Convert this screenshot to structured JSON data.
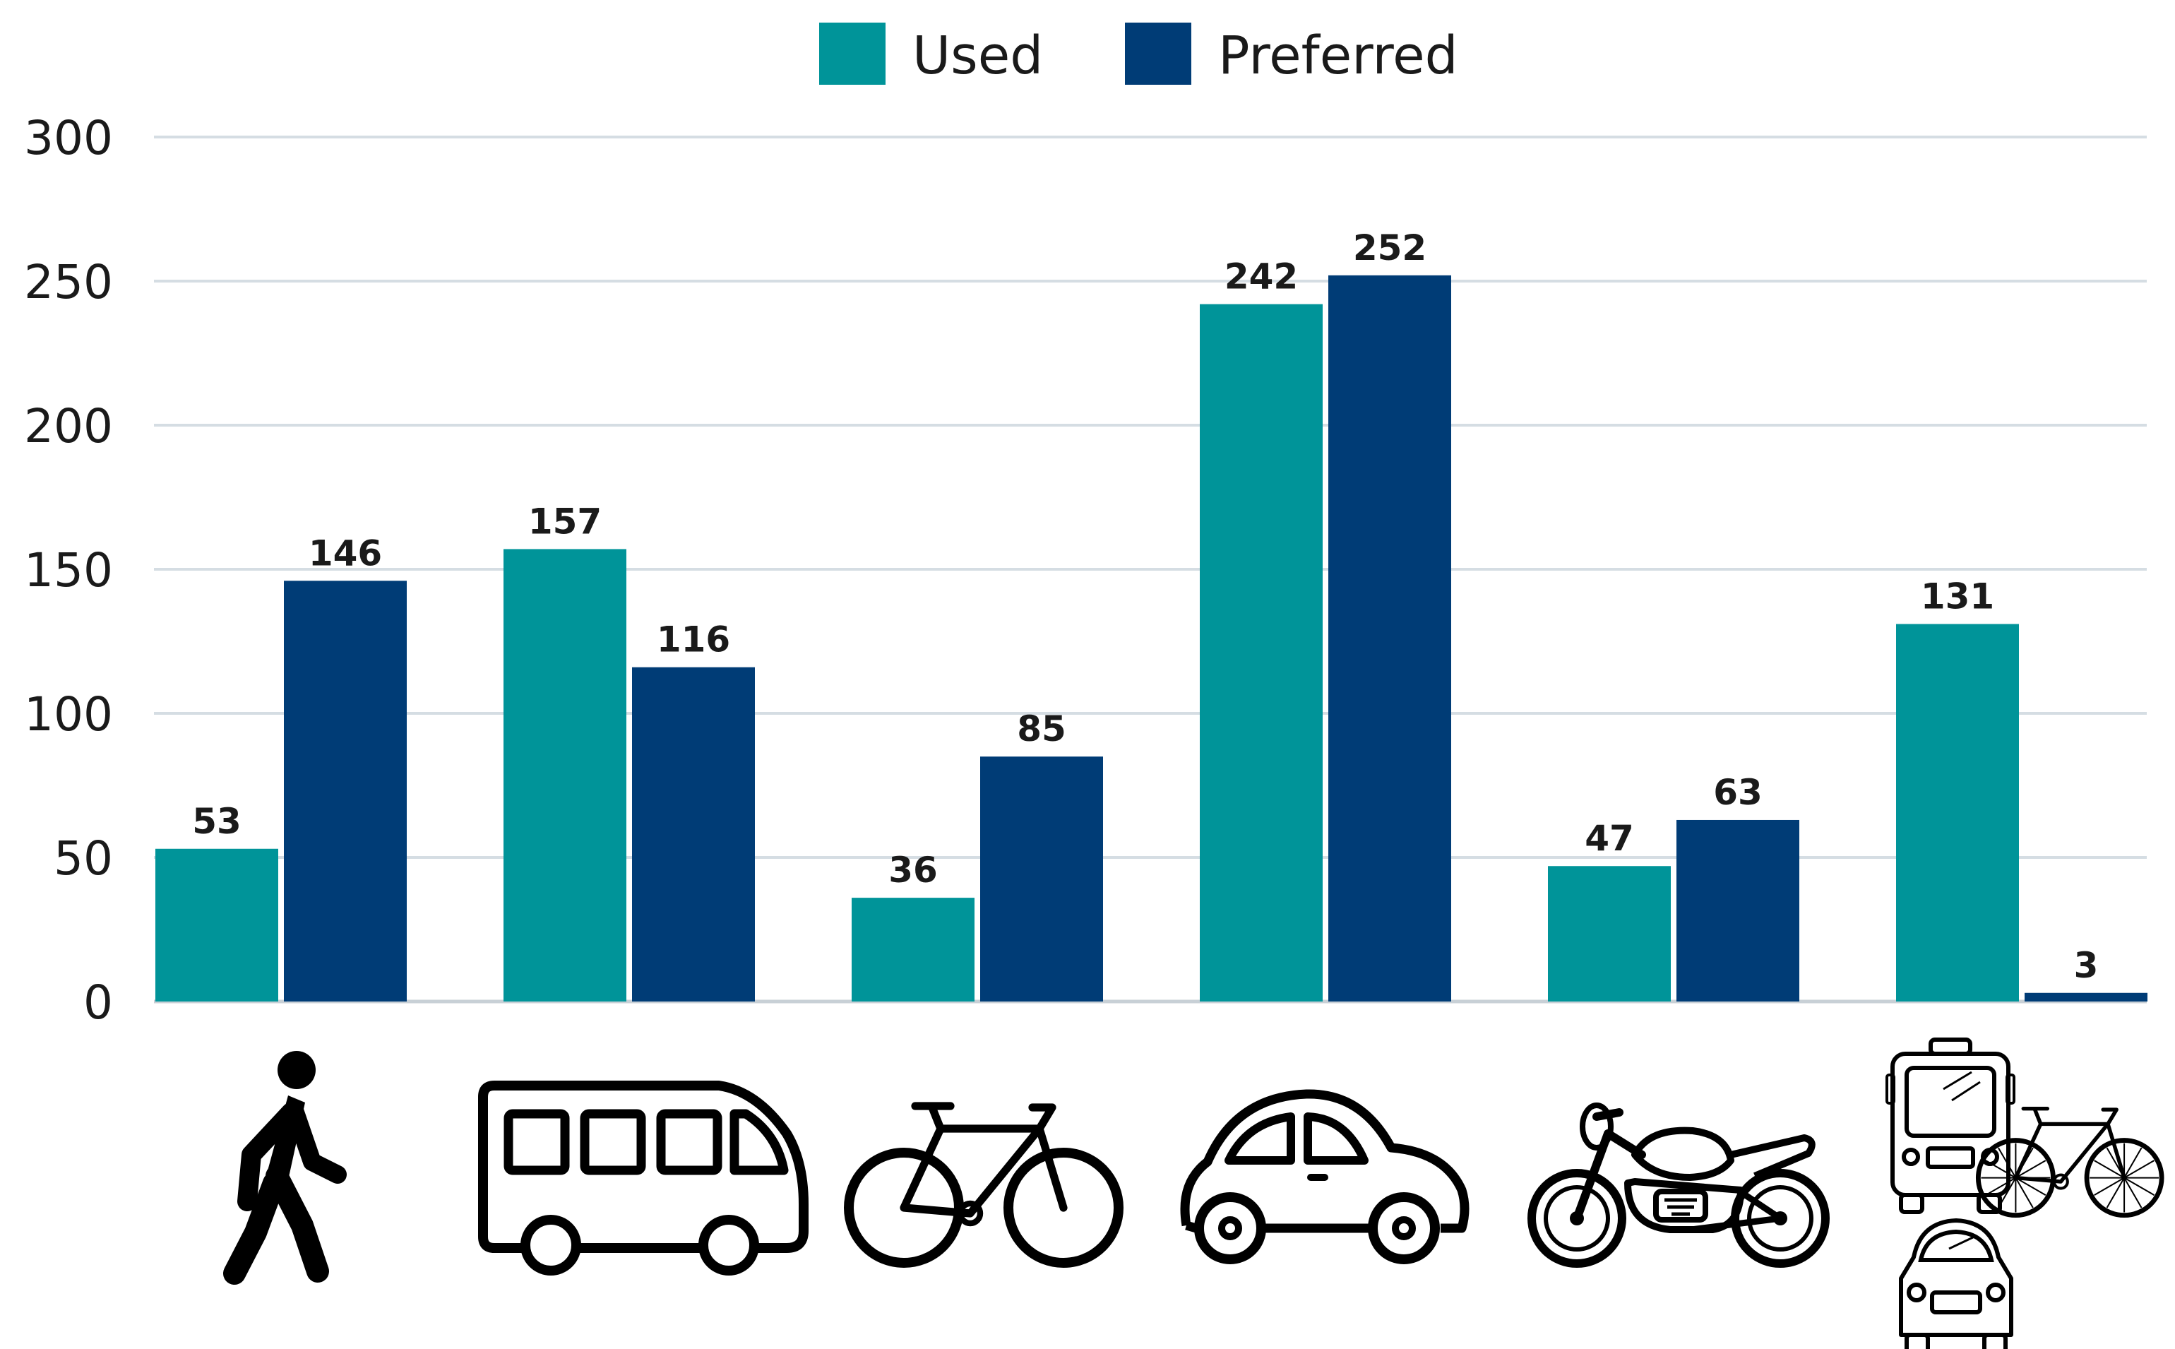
{
  "chart_data": {
    "type": "bar",
    "categories": [
      "walking",
      "bus",
      "bicycle",
      "car",
      "motorcycle",
      "multimodal"
    ],
    "category_icons": [
      "walking-person-icon",
      "bus-icon",
      "bicycle-icon",
      "car-icon",
      "motorcycle-icon",
      "multimodal-icon"
    ],
    "series": [
      {
        "name": "Used",
        "color": "#009499",
        "values": [
          53,
          157,
          36,
          242,
          47,
          131
        ]
      },
      {
        "name": "Preferred",
        "color": "#003C76",
        "values": [
          146,
          116,
          85,
          252,
          63,
          3
        ]
      }
    ],
    "ylim": [
      0,
      300
    ],
    "yticks": [
      0,
      50,
      100,
      150,
      200,
      250,
      300
    ],
    "grid": true,
    "legend_position": "top-center",
    "title": "",
    "xlabel": "",
    "ylabel": ""
  }
}
